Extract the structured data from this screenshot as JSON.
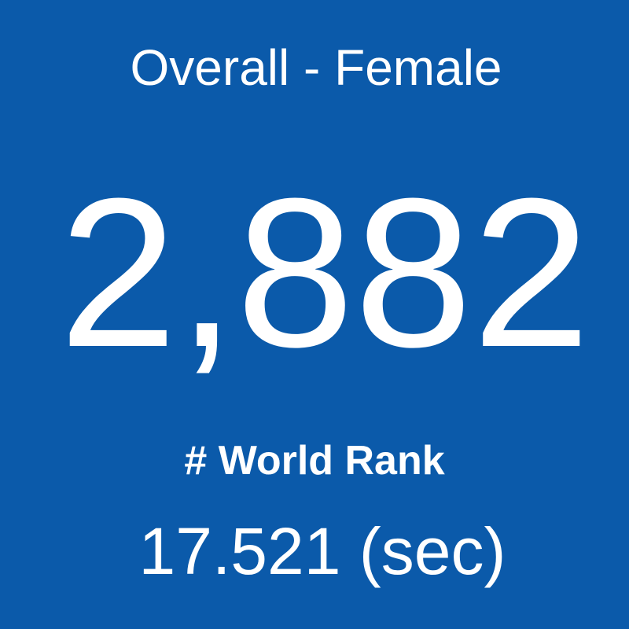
{
  "tile": {
    "title": "Overall - Female",
    "rank": "2,882",
    "rank_label": "# World Rank",
    "time": "17.521 (sec)"
  }
}
